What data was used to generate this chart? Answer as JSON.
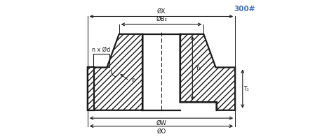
{
  "title_text": "300#",
  "title_color": "#4472C4",
  "line_color": "#1a1a1a",
  "bg_color": "#ffffff",
  "labels": {
    "OX": "ØX",
    "OB3": "ØB₃",
    "OW": "ØW",
    "OO": "ØO",
    "Y3": "Y₃",
    "T1": "T₁",
    "r0": "r₀",
    "nxOd": "n x Ød"
  },
  "fig_width": 4.6,
  "fig_height": 1.99,
  "dpi": 100
}
